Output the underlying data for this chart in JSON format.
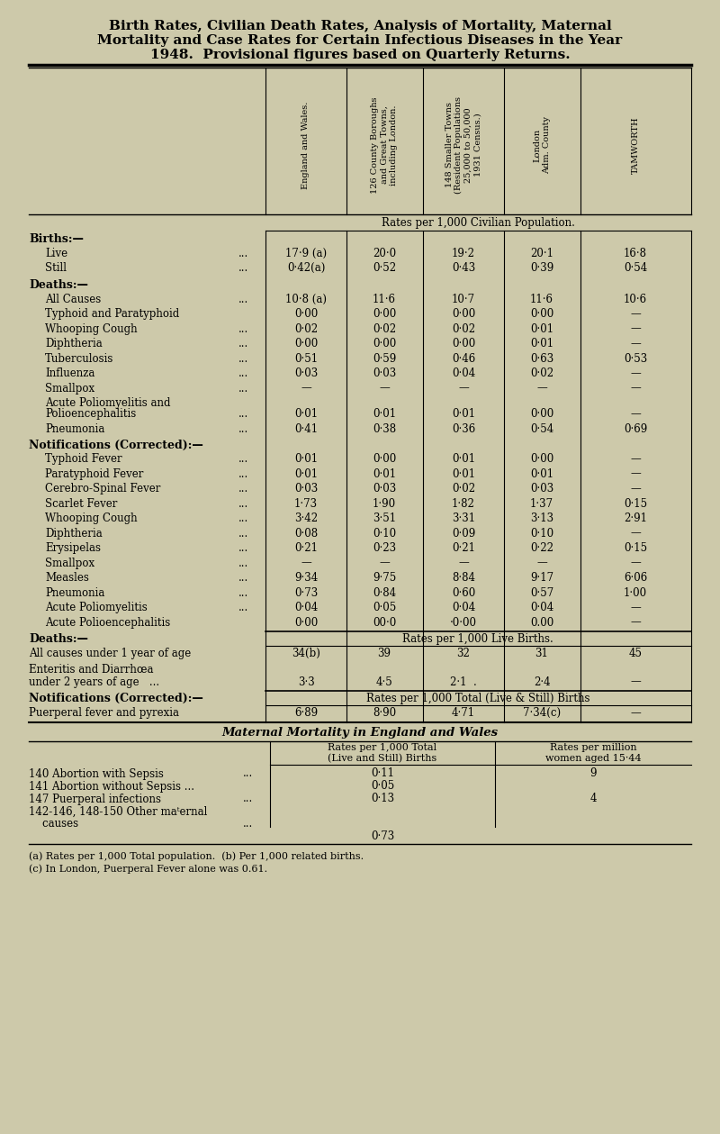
{
  "title_line1": "Birth Rates, Civilian Death Rates, Analysis of Mortality, Maternal",
  "title_line2": "Mortality and Case Rates for Certain Infectious Diseases in the Year",
  "title_line3": "1948.  Provisional figures based on Quarterly Returns.",
  "bg_color": "#cdc9aa",
  "col_headers": [
    "England and Wales.",
    "126 County Boroughs\nand Great Towns,\nincluding London.",
    "148 Smaller Towns\n(Resident Populations\n25,000 to 50,000\n1931 Census.)",
    "London\nAdm. County",
    "TAMWORTH"
  ],
  "section_rates_per_1000_civilian": "Rates per 1,000 Civilian Population.",
  "births_header": "Births:—",
  "deaths_header": "Deaths:—",
  "notifications_header": "Notifications (Corrected):—",
  "deaths2_header": "Deaths:—",
  "notifications2_header": "Notifications (Corrected):—",
  "section_rates_per_1000_live": "Rates per 1,000 Live Births.",
  "section_rates_per_1000_total": "Rates per 1,000 Total (Live & Still) Births",
  "maternal_header": "Maternal Mortality in England and Wales",
  "maternal_col1": "Rates per 1,000 Total\n(Live and Still) Births",
  "maternal_col2": "Rates per million\nwomen aged 15·44",
  "footnotes": [
    "(a) Rates per 1,000 Total population.  (b) Per 1,000 related births.",
    "(c) In London, Puerperal Fever alone was 0.61."
  ]
}
